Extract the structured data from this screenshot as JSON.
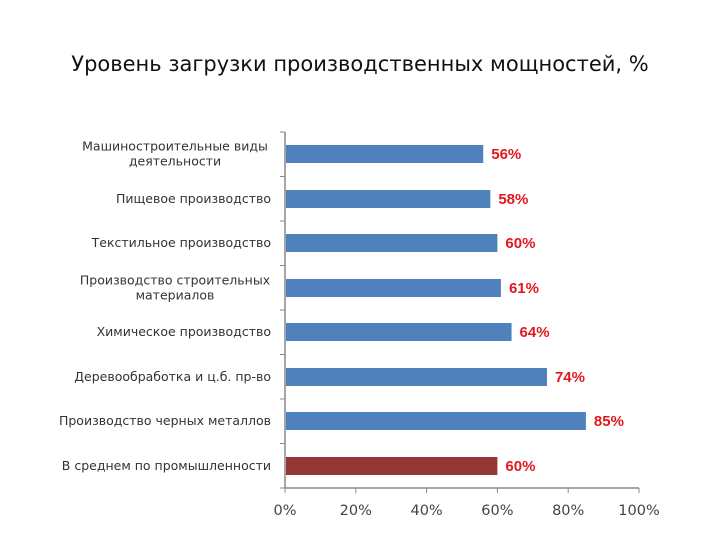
{
  "slide": {
    "title": "Уровень загрузки производственных мощностей, %"
  },
  "colors": {
    "bar": "#4f81bd",
    "bar_highlight": "#953735",
    "label": "#e0191e",
    "axis": "#888888"
  },
  "chart_data": {
    "type": "bar",
    "orientation": "horizontal",
    "title": "Уровень загрузки производственных мощностей, %",
    "xlabel": "",
    "ylabel": "",
    "xlim": [
      0,
      100
    ],
    "x_ticks": [
      "0%",
      "20%",
      "40%",
      "60%",
      "80%",
      "100%"
    ],
    "grid": false,
    "legend": "none",
    "categories": [
      [
        "Машиностроительные виды",
        "деятельности"
      ],
      [
        "Пищевое производство"
      ],
      [
        "Текстильное производство"
      ],
      [
        "Производство строительных",
        "материалов"
      ],
      [
        "Химическое производство"
      ],
      [
        "Деревообработка и ц.б. пр-во"
      ],
      [
        "Производство черных металлов"
      ],
      [
        "В среднем по промышленности"
      ]
    ],
    "values": [
      56,
      58,
      60,
      61,
      64,
      74,
      85,
      60
    ],
    "value_labels": [
      "56%",
      "58%",
      "60%",
      "61%",
      "64%",
      "74%",
      "85%",
      "60%"
    ],
    "highlight_index": 7
  }
}
